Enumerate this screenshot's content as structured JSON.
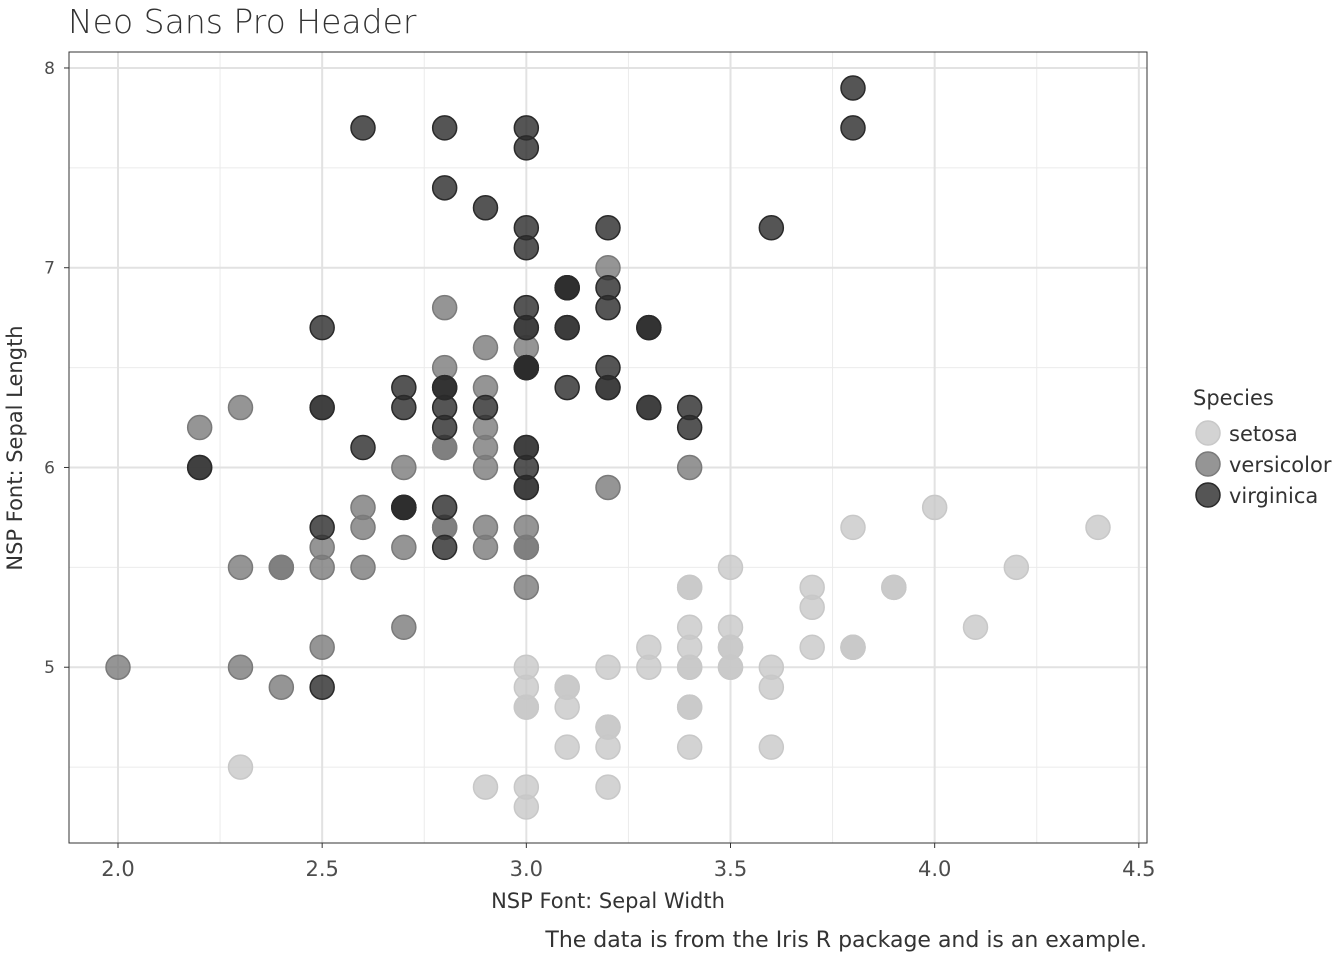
{
  "chart_data": {
    "type": "scatter",
    "title": "Neo Sans Pro Header",
    "xlabel": "NSP Font: Sepal Width",
    "ylabel": "NSP Font: Sepal Length",
    "caption": "The data is from the Iris R package and is an example.",
    "xlim": [
      1.88,
      4.52
    ],
    "ylim": [
      4.12,
      8.08
    ],
    "x_ticks": [
      "2.0",
      "2.5",
      "3.0",
      "3.5",
      "4.0",
      "4.5"
    ],
    "y_ticks": [
      "5",
      "6",
      "7",
      "8"
    ],
    "grid": true,
    "legend": {
      "title": "Species",
      "placement": "right",
      "entries": [
        "setosa",
        "versicolor",
        "virginica"
      ]
    },
    "series": [
      {
        "name": "setosa",
        "color": "#c8c8c8",
        "x": [
          3.5,
          3.0,
          3.2,
          3.1,
          3.6,
          3.9,
          3.4,
          3.4,
          2.9,
          3.1,
          3.7,
          3.4,
          3.0,
          3.0,
          4.0,
          4.4,
          3.9,
          3.5,
          3.8,
          3.8,
          3.4,
          3.7,
          3.6,
          3.3,
          3.4,
          3.0,
          3.4,
          3.5,
          3.4,
          3.2,
          3.1,
          3.4,
          4.1,
          4.2,
          3.1,
          3.2,
          3.5,
          3.6,
          3.0,
          3.4,
          3.5,
          2.3,
          3.2,
          3.5,
          3.8,
          3.0,
          3.8,
          3.2,
          3.7,
          3.3
        ],
        "y": [
          5.1,
          4.9,
          4.7,
          4.6,
          5.0,
          5.4,
          4.6,
          5.0,
          4.4,
          4.9,
          5.4,
          4.8,
          4.8,
          4.3,
          5.8,
          5.7,
          5.4,
          5.1,
          5.7,
          5.1,
          5.4,
          5.1,
          4.6,
          5.1,
          4.8,
          5.0,
          5.0,
          5.2,
          5.2,
          4.7,
          4.8,
          5.4,
          5.2,
          5.5,
          4.9,
          5.0,
          5.5,
          4.9,
          4.4,
          5.1,
          5.0,
          4.5,
          4.4,
          5.0,
          5.1,
          4.8,
          5.1,
          4.6,
          5.3,
          5.0
        ]
      },
      {
        "name": "versicolor",
        "color": "#7a7a7a",
        "x": [
          3.2,
          3.2,
          3.1,
          2.3,
          2.8,
          2.8,
          3.3,
          2.4,
          2.9,
          2.7,
          2.0,
          3.0,
          2.2,
          2.9,
          2.9,
          3.1,
          3.0,
          2.7,
          2.2,
          2.5,
          3.2,
          2.8,
          2.5,
          2.8,
          2.9,
          3.0,
          2.8,
          3.0,
          2.9,
          2.6,
          2.4,
          2.4,
          2.7,
          2.7,
          3.0,
          3.4,
          3.1,
          2.3,
          3.0,
          2.5,
          2.6,
          3.0,
          2.6,
          2.3,
          2.7,
          3.0,
          2.9,
          2.9,
          2.5,
          2.8
        ],
        "y": [
          7.0,
          6.4,
          6.9,
          5.5,
          6.5,
          5.7,
          6.3,
          4.9,
          6.6,
          5.2,
          5.0,
          5.9,
          6.0,
          6.1,
          5.6,
          6.7,
          5.6,
          5.8,
          6.2,
          5.6,
          5.9,
          6.1,
          6.3,
          6.1,
          6.4,
          6.6,
          6.8,
          6.7,
          6.0,
          5.7,
          5.5,
          5.5,
          5.8,
          6.0,
          5.4,
          6.0,
          6.7,
          6.3,
          5.6,
          5.5,
          5.5,
          6.1,
          5.8,
          5.0,
          5.6,
          5.7,
          5.7,
          6.2,
          5.1,
          5.7
        ]
      },
      {
        "name": "virginica",
        "color": "#2a2a2a",
        "x": [
          3.3,
          2.7,
          3.0,
          2.9,
          3.0,
          3.0,
          2.5,
          2.9,
          2.5,
          3.6,
          3.2,
          2.7,
          3.0,
          2.5,
          2.8,
          3.2,
          3.0,
          3.8,
          2.6,
          2.2,
          3.2,
          2.8,
          2.8,
          2.7,
          3.3,
          3.2,
          2.8,
          3.0,
          2.8,
          3.0,
          2.8,
          3.8,
          2.8,
          2.8,
          2.6,
          3.0,
          3.4,
          3.1,
          3.0,
          3.1,
          3.1,
          3.1,
          2.7,
          3.2,
          3.3,
          3.0,
          2.5,
          3.0,
          3.4,
          3.0
        ],
        "y": [
          6.3,
          5.8,
          7.1,
          6.3,
          6.5,
          7.6,
          4.9,
          7.3,
          6.7,
          7.2,
          6.5,
          6.4,
          6.8,
          5.7,
          5.8,
          6.4,
          6.5,
          7.7,
          7.7,
          6.0,
          6.9,
          5.6,
          7.7,
          6.3,
          6.7,
          7.2,
          6.2,
          6.1,
          6.4,
          7.2,
          7.4,
          7.9,
          6.4,
          6.3,
          6.1,
          7.7,
          6.3,
          6.4,
          6.0,
          6.9,
          6.7,
          6.9,
          5.8,
          6.8,
          6.7,
          6.7,
          6.3,
          6.5,
          6.2,
          5.9
        ]
      }
    ]
  }
}
